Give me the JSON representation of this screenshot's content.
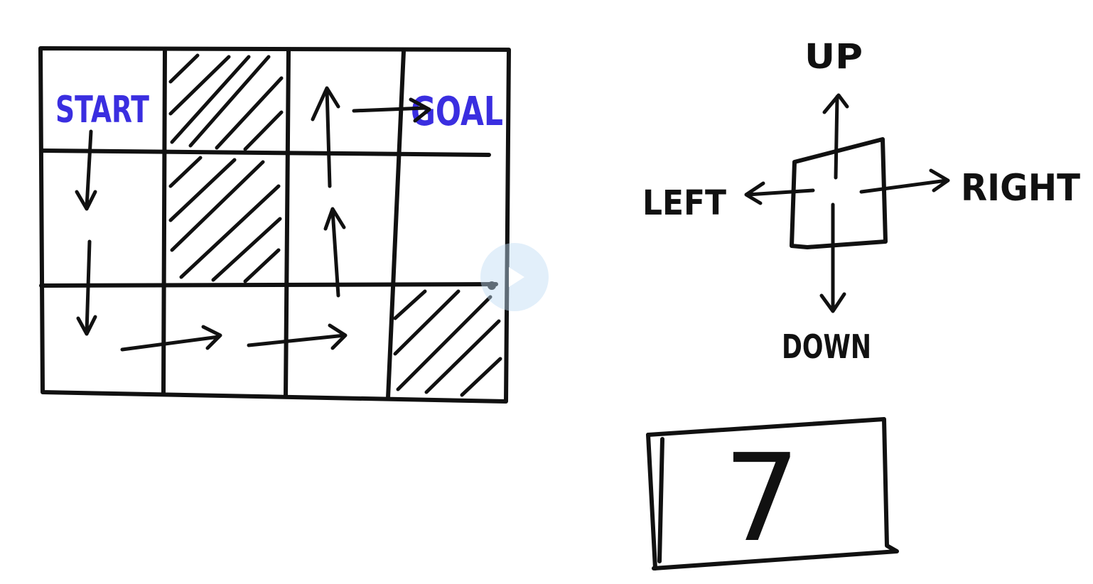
{
  "grid": {
    "start_label": "START",
    "goal_label": "GOAL",
    "label_color": "#3a2ee0",
    "ink_color": "#111111"
  },
  "actions": {
    "up": "UP",
    "left": "LEFT",
    "right": "RIGHT",
    "down": "DOWN"
  },
  "answer": {
    "value": "7"
  },
  "video": {
    "play_icon": "play-icon"
  }
}
